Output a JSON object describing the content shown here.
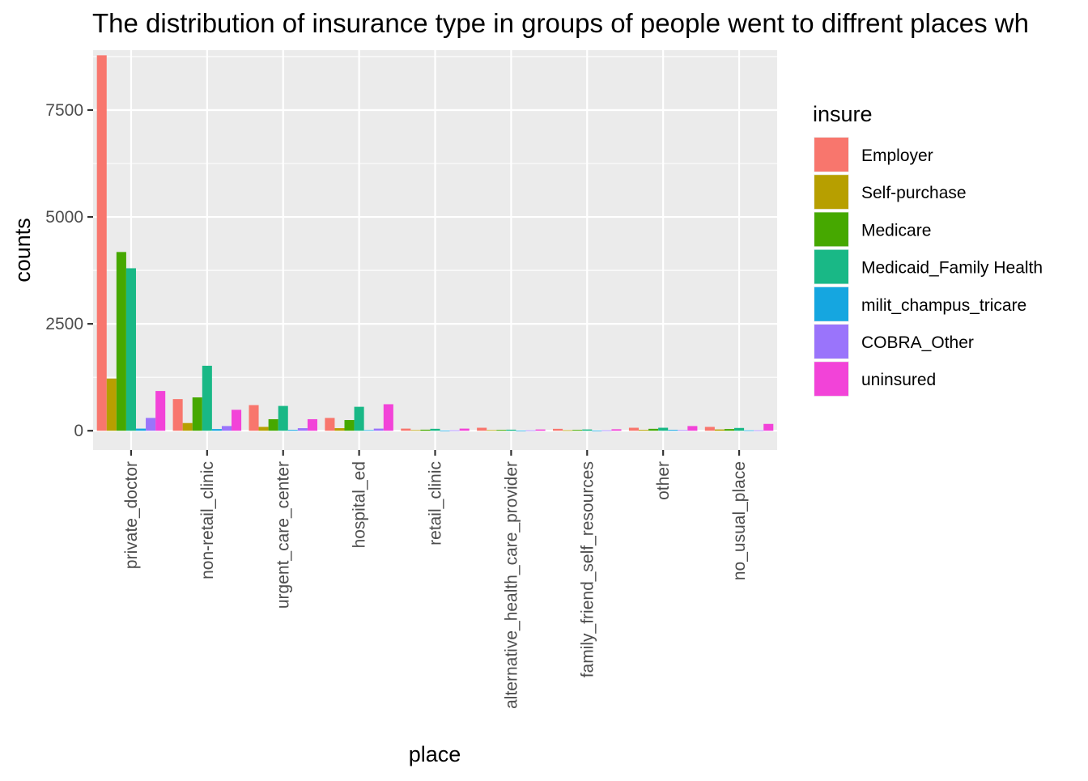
{
  "chart_data": {
    "type": "bar",
    "title": "The distribution of insurance type in groups of people went to diffrent places wh",
    "xlabel": "place",
    "ylabel": "counts",
    "ylim": [
      -450,
      8900
    ],
    "y_ticks": [
      0,
      2500,
      5000,
      7500
    ],
    "y_tick_labels": [
      "0",
      "2500",
      "5000",
      "7500"
    ],
    "grid": true,
    "legend": {
      "title": "insure",
      "placement": "right"
    },
    "categories": [
      "private_doctor",
      "non-retail_clinic",
      "urgent_care_center",
      "hospital_ed",
      "retail_clinic",
      "alternative_health_care_provider",
      "family_friend_self_resources",
      "other",
      "no_usual_place"
    ],
    "series": [
      {
        "name": "Employer",
        "color": "#F8766D",
        "values": [
          8780,
          740,
          600,
          300,
          50,
          70,
          45,
          70,
          90
        ]
      },
      {
        "name": "Self-purchase",
        "color": "#B79F00",
        "values": [
          1220,
          180,
          90,
          60,
          15,
          15,
          12,
          20,
          30
        ]
      },
      {
        "name": "Medicare",
        "color": "#46A800",
        "values": [
          4180,
          780,
          270,
          250,
          25,
          20,
          20,
          45,
          40
        ]
      },
      {
        "name": "Medicaid_Family Health",
        "color": "#19B886",
        "values": [
          3800,
          1520,
          580,
          560,
          45,
          25,
          30,
          70,
          65
        ]
      },
      {
        "name": "milit_champus_tricare",
        "color": "#15A6E0",
        "values": [
          50,
          40,
          20,
          15,
          5,
          5,
          5,
          20,
          10
        ]
      },
      {
        "name": "COBRA_Other",
        "color": "#9A74FB",
        "values": [
          300,
          110,
          60,
          50,
          10,
          10,
          10,
          15,
          10
        ]
      },
      {
        "name": "uninsured",
        "color": "#F243D8",
        "values": [
          930,
          490,
          270,
          620,
          50,
          30,
          35,
          110,
          160
        ]
      }
    ]
  }
}
